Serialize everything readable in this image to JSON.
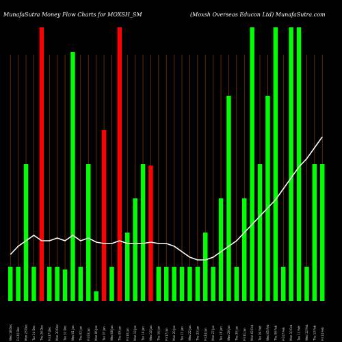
{
  "header": {
    "left_title": "MunafaSutra  Money Flow  Charts for MOXSH_SM",
    "right_title": "(Moxsh Overseas Educon Ltd) MunafaSutra.com"
  },
  "colors": {
    "background": "#000000",
    "up_bar": "#00ff00",
    "down_bar": "#ff0000",
    "grid_line": "#7a3b00",
    "line": "#ffffff"
  },
  "chart_data": {
    "type": "bar",
    "title": "MunafaSutra  Money Flow  Charts for MOXSH_SM",
    "subtitle": "(Moxsh Overseas Educon Ltd) MunafaSutra.com",
    "xlabel": "",
    "ylabel": "",
    "ylim": [
      0,
      100
    ],
    "grid": true,
    "categories": [
      "Wed 18 Dec",
      "Fri 20 Dec",
      "Mon 23 Dec",
      "Tue 24 Dec",
      "Thu 26 Dec",
      "Fri 27 Dec",
      "Mon 30 Dec",
      "Tue 31 Dec",
      "Wed 01 Jan",
      "Thu 02 Jan",
      "Fri 03 Jan",
      "Mon 06 Jan",
      "Tue 07 Jan",
      "Wed 08 Jan",
      "Thu 09 Jan",
      "Fri 10 Jan",
      "Mon 13 Jan",
      "Tue 14 Jan",
      "Wed 15 Jan",
      "Thu 16 Jan",
      "Fri 17 Jan",
      "Mon 20 Jan",
      "Tue 21 Jan",
      "Wed 22 Jan",
      "Thu 23 Jan",
      "Fri 24 Jan",
      "Mon 27 Jan",
      "Tue 28 Jan",
      "Wed 29 Jan",
      "Thu 30 Jan",
      "Fri 31 Jan",
      "Mon 03 Feb",
      "Tue 04 Feb",
      "Wed 05 Feb",
      "Thu 06 Feb",
      "Fri 07 Feb",
      "Mon 10 Feb",
      "Tue 11 Feb",
      "Wed 12 Feb",
      "Thu 13 Feb",
      "Fri 14 Feb"
    ],
    "series": [
      {
        "values": [
          12.5,
          12.5,
          50,
          12.5,
          100,
          12.5,
          12.5,
          11.5,
          91,
          12.5,
          50,
          3.5,
          62.5,
          12.5,
          100,
          25,
          37.5,
          50,
          49.5,
          12.5,
          12.5,
          12.5,
          12.5,
          12.5,
          12.5,
          25,
          12.5,
          37.5,
          75,
          12.5,
          37.5,
          100,
          50,
          75,
          100,
          12.5,
          100,
          100,
          12.5,
          50,
          50
        ],
        "colors": [
          "up",
          "up",
          "up",
          "up",
          "down",
          "up",
          "up",
          "up",
          "up",
          "up",
          "up",
          "up",
          "down",
          "up",
          "down",
          "up",
          "up",
          "up",
          "down",
          "up",
          "up",
          "up",
          "up",
          "up",
          "up",
          "up",
          "up",
          "up",
          "up",
          "up",
          "up",
          "up",
          "up",
          "up",
          "up",
          "up",
          "up",
          "up",
          "up",
          "up",
          "up"
        ]
      },
      {
        "type": "line",
        "values": [
          17,
          20,
          22,
          24,
          22,
          22,
          23,
          22,
          24,
          22,
          23,
          21.5,
          21,
          21,
          22,
          21,
          21,
          21,
          21.5,
          21,
          21,
          20,
          18,
          16,
          15,
          15,
          16,
          18,
          20,
          22,
          25,
          28,
          31,
          34,
          37,
          41,
          45,
          49,
          52,
          56,
          60
        ]
      }
    ]
  }
}
